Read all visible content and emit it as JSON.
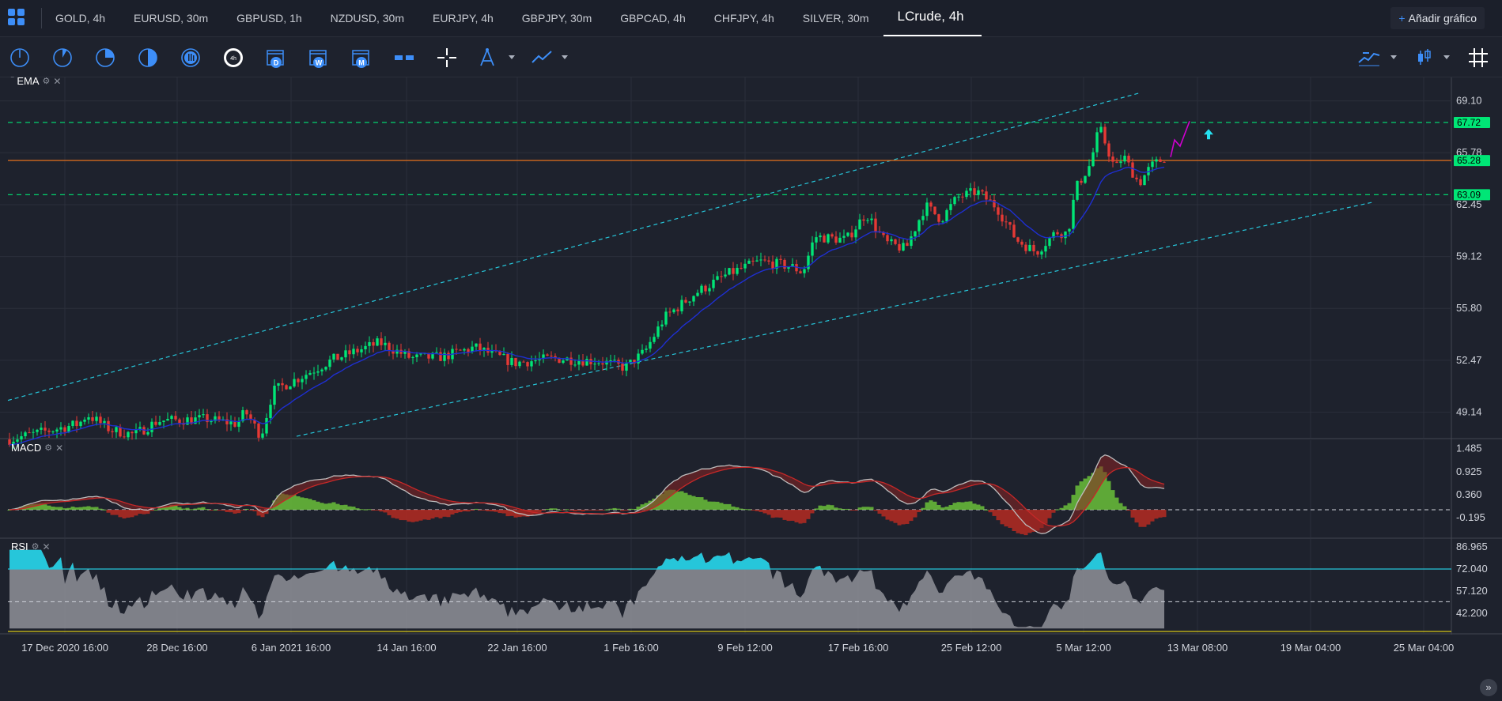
{
  "tabs": [
    {
      "label": "GOLD, 4h"
    },
    {
      "label": "EURUSD, 30m"
    },
    {
      "label": "GBPUSD, 1h"
    },
    {
      "label": "NZDUSD, 30m"
    },
    {
      "label": "EURJPY, 4h"
    },
    {
      "label": "GBPJPY, 30m"
    },
    {
      "label": "GBPCAD, 4h"
    },
    {
      "label": "CHFJPY, 4h"
    },
    {
      "label": "SILVER, 30m"
    },
    {
      "label": "LCrude, 4h"
    }
  ],
  "active_tab": "LCrude, 4h",
  "add_chart_label": "Añadir gráfico",
  "toolbar": {
    "timeframe_badge": "4h",
    "day_badge": "D",
    "week_badge": "W",
    "month_badge": "M"
  },
  "panels": {
    "price": {
      "label": "EMA"
    },
    "macd": {
      "label": "MACD"
    },
    "rsi": {
      "label": "RSI"
    }
  },
  "price_axis": [
    "69.10",
    "65.78",
    "62.45",
    "59.12",
    "55.80",
    "52.47",
    "49.14"
  ],
  "price_markers": [
    {
      "value": "67.72",
      "color": "#00e676"
    },
    {
      "value": "65.28",
      "color": "#00e676"
    },
    {
      "value": "63.09",
      "color": "#00e676"
    }
  ],
  "macd_axis": [
    "1.485",
    "0.925",
    "0.360",
    "-0.195"
  ],
  "rsi_axis": [
    "86.965",
    "72.040",
    "57.120",
    "42.200"
  ],
  "time_axis": [
    "17 Dec 2020 16:00",
    "28 Dec 16:00",
    "6 Jan 2021 16:00",
    "14 Jan 16:00",
    "22 Jan 16:00",
    "1 Feb 16:00",
    "9 Feb 12:00",
    "17 Feb 16:00",
    "25 Feb 12:00",
    "5 Mar 12:00",
    "13 Mar 08:00",
    "19 Mar 04:00",
    "25 Mar 04:00"
  ],
  "colors": {
    "background": "#1e222d",
    "up": "#00e676",
    "down": "#e53935",
    "ema": "#1e2fd1",
    "channel": "#26c6da",
    "level_line": "#00e676",
    "resistance": "#d2691e",
    "projection": "#d000d0",
    "rsi_overbought": "#26c6da"
  },
  "chart_data": {
    "type": "candlestick",
    "symbol": "LCrude",
    "timeframe": "4h",
    "ylim": [
      47.5,
      70.2
    ],
    "key_points": [
      {
        "x": "17 Dec 2020 16:00",
        "y": 47.4
      },
      {
        "x": "28 Dec 16:00",
        "y": 48.5
      },
      {
        "x": "6 Jan 2021 16:00",
        "y": 51.4
      },
      {
        "x": "14 Jan 16:00",
        "y": 52.6
      },
      {
        "x": "22 Jan 16:00",
        "y": 52.1
      },
      {
        "x": "1 Feb 16:00",
        "y": 53.4
      },
      {
        "x": "9 Feb 12:00",
        "y": 58.8
      },
      {
        "x": "17 Feb 16:00",
        "y": 61.2
      },
      {
        "x": "25 Feb 12:00",
        "y": 63.4
      },
      {
        "x": "5 Mar 12:00",
        "y": 66.0
      }
    ],
    "levels": [
      67.72,
      65.28,
      63.09
    ],
    "macd_range": [
      -0.195,
      1.485
    ],
    "rsi_levels": [
      72.04,
      50
    ],
    "rsi_range": [
      30,
      86.965
    ]
  }
}
